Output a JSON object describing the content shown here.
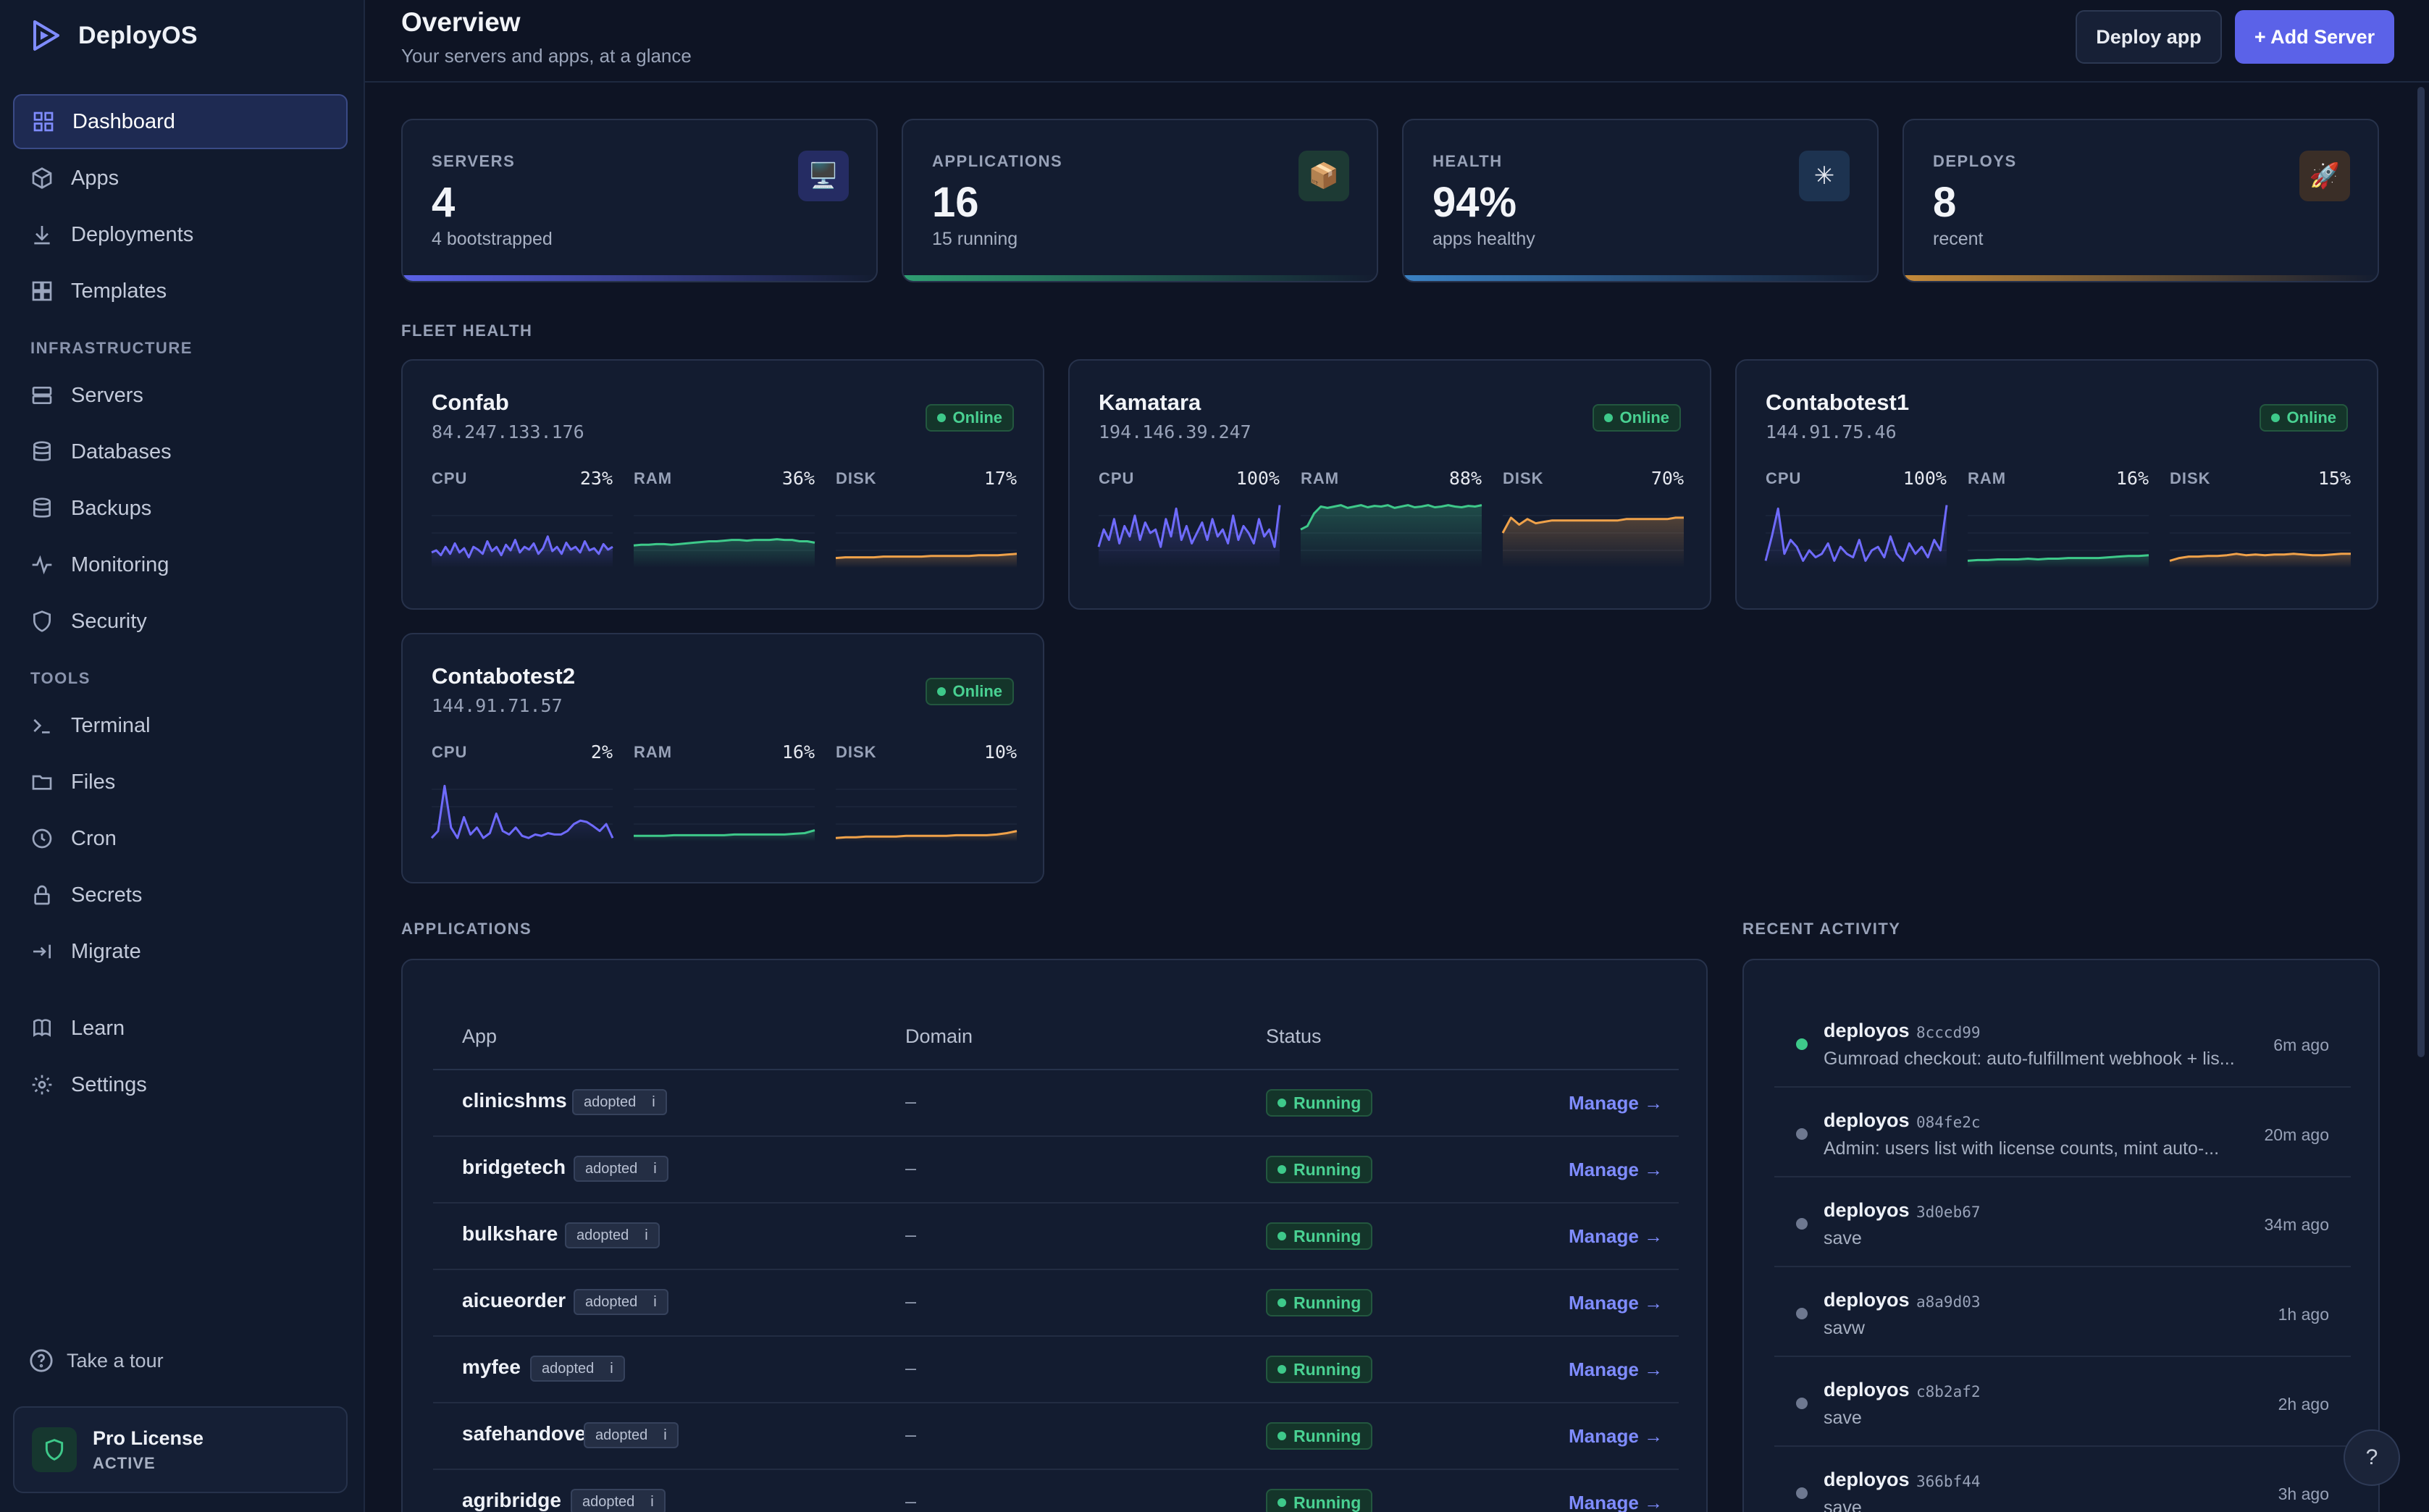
{
  "app": {
    "name": "DeployOS"
  },
  "sidebar": {
    "main": [
      {
        "label": "Dashboard",
        "icon": "dashboard-icon"
      },
      {
        "label": "Apps",
        "icon": "box-icon"
      },
      {
        "label": "Deployments",
        "icon": "download-icon"
      },
      {
        "label": "Templates",
        "icon": "grid-icon"
      }
    ],
    "infrastructure_title": "INFRASTRUCTURE",
    "infrastructure": [
      {
        "label": "Servers",
        "icon": "server-icon"
      },
      {
        "label": "Databases",
        "icon": "database-icon"
      },
      {
        "label": "Backups",
        "icon": "database-icon"
      },
      {
        "label": "Monitoring",
        "icon": "pulse-icon"
      },
      {
        "label": "Security",
        "icon": "shield-icon"
      }
    ],
    "tools_title": "TOOLS",
    "tools": [
      {
        "label": "Terminal",
        "icon": "terminal-icon"
      },
      {
        "label": "Files",
        "icon": "folder-icon"
      },
      {
        "label": "Cron",
        "icon": "clock-icon"
      },
      {
        "label": "Secrets",
        "icon": "lock-icon"
      },
      {
        "label": "Migrate",
        "icon": "migrate-icon"
      }
    ],
    "bottom": [
      {
        "label": "Learn",
        "icon": "book-icon"
      },
      {
        "label": "Settings",
        "icon": "gear-icon"
      }
    ],
    "tour_label": "Take a tour",
    "license": {
      "title": "Pro License",
      "status": "ACTIVE"
    }
  },
  "header": {
    "title": "Overview",
    "subtitle": "Your servers and apps, at a glance",
    "deploy_label": "Deploy app",
    "add_label": "+ Add Server"
  },
  "stats": [
    {
      "label": "SERVERS",
      "value": "4",
      "sub": "4 bootstrapped",
      "icon": "🖥️",
      "accent": "#5b62e8"
    },
    {
      "label": "APPLICATIONS",
      "value": "16",
      "sub": "15 running",
      "icon": "📦",
      "accent": "#2f9e72"
    },
    {
      "label": "HEALTH",
      "value": "94%",
      "sub": "apps healthy",
      "icon": "✳",
      "accent": "#3b82c4"
    },
    {
      "label": "DEPLOYS",
      "value": "8",
      "sub": "recent",
      "icon": "🚀",
      "accent": "#c48a3a"
    }
  ],
  "fleet_title": "FLEET HEALTH",
  "servers": [
    {
      "name": "Confab",
      "ip": "84.247.133.176",
      "status": "Online",
      "metrics": [
        {
          "label": "CPU",
          "value": "23%",
          "color": "#6f6bff",
          "series": [
            0.22,
            0.25,
            0.18,
            0.3,
            0.2,
            0.35,
            0.22,
            0.28,
            0.15,
            0.3,
            0.26,
            0.2,
            0.38,
            0.24,
            0.3,
            0.18,
            0.33,
            0.25,
            0.4,
            0.22,
            0.3,
            0.26,
            0.35,
            0.2,
            0.28,
            0.45,
            0.24,
            0.3,
            0.2,
            0.36,
            0.26,
            0.3,
            0.22,
            0.38,
            0.25,
            0.28,
            0.2,
            0.34,
            0.26,
            0.3
          ]
        },
        {
          "label": "RAM",
          "value": "36%",
          "color": "#3ec98a",
          "series": [
            0.32,
            0.33,
            0.33,
            0.34,
            0.34,
            0.33,
            0.34,
            0.35,
            0.36,
            0.37,
            0.38,
            0.38,
            0.39,
            0.4,
            0.4,
            0.39,
            0.4,
            0.4,
            0.4,
            0.41,
            0.4,
            0.4,
            0.38,
            0.38,
            0.36
          ]
        },
        {
          "label": "DISK",
          "value": "17%",
          "color": "#f0a24a",
          "series": [
            0.14,
            0.15,
            0.15,
            0.15,
            0.15,
            0.16,
            0.16,
            0.16,
            0.16,
            0.16,
            0.17,
            0.17,
            0.17,
            0.17,
            0.17,
            0.18,
            0.18,
            0.18,
            0.19,
            0.2
          ]
        }
      ]
    },
    {
      "name": "Kamatara",
      "ip": "194.146.39.247",
      "status": "Online",
      "metrics": [
        {
          "label": "CPU",
          "value": "100%",
          "color": "#6f6bff",
          "series": [
            0.3,
            0.55,
            0.4,
            0.7,
            0.35,
            0.6,
            0.45,
            0.75,
            0.4,
            0.65,
            0.5,
            0.55,
            0.3,
            0.7,
            0.45,
            0.85,
            0.4,
            0.6,
            0.35,
            0.5,
            0.65,
            0.4,
            0.7,
            0.45,
            0.55,
            0.35,
            0.75,
            0.4,
            0.6,
            0.5,
            0.35,
            0.7,
            0.45,
            0.55,
            0.3,
            0.9
          ]
        },
        {
          "label": "RAM",
          "value": "88%",
          "color": "#3ec98a",
          "series": [
            0.55,
            0.6,
            0.78,
            0.88,
            0.86,
            0.88,
            0.9,
            0.86,
            0.88,
            0.9,
            0.87,
            0.89,
            0.88,
            0.9,
            0.86,
            0.88,
            0.9,
            0.87,
            0.88,
            0.9,
            0.87,
            0.88,
            0.9,
            0.88,
            0.87,
            0.89,
            0.88,
            0.9
          ]
        },
        {
          "label": "DISK",
          "value": "70%",
          "color": "#f0a24a",
          "series": [
            0.5,
            0.72,
            0.62,
            0.7,
            0.64,
            0.66,
            0.68,
            0.68,
            0.68,
            0.68,
            0.68,
            0.68,
            0.68,
            0.68,
            0.68,
            0.7,
            0.7,
            0.7,
            0.7,
            0.7,
            0.7,
            0.72,
            0.72
          ]
        }
      ]
    },
    {
      "name": "Contabotest1",
      "ip": "144.91.75.46",
      "status": "Online",
      "metrics": [
        {
          "label": "CPU",
          "value": "100%",
          "color": "#6f6bff",
          "series": [
            0.1,
            0.45,
            0.85,
            0.2,
            0.4,
            0.3,
            0.1,
            0.25,
            0.15,
            0.2,
            0.35,
            0.1,
            0.3,
            0.2,
            0.15,
            0.4,
            0.1,
            0.25,
            0.3,
            0.15,
            0.45,
            0.2,
            0.1,
            0.35,
            0.2,
            0.3,
            0.15,
            0.4,
            0.25,
            0.9
          ]
        },
        {
          "label": "RAM",
          "value": "16%",
          "color": "#3ec98a",
          "series": [
            0.1,
            0.11,
            0.11,
            0.12,
            0.12,
            0.12,
            0.13,
            0.12,
            0.13,
            0.13,
            0.14,
            0.14,
            0.14,
            0.14,
            0.15,
            0.16,
            0.17,
            0.17,
            0.18
          ]
        },
        {
          "label": "DISK",
          "value": "15%",
          "color": "#f0a24a",
          "series": [
            0.1,
            0.14,
            0.16,
            0.16,
            0.17,
            0.17,
            0.18,
            0.2,
            0.18,
            0.19,
            0.18,
            0.19,
            0.19,
            0.2,
            0.19,
            0.18,
            0.18,
            0.19,
            0.2,
            0.2
          ]
        }
      ]
    },
    {
      "name": "Contabotest2",
      "ip": "144.91.71.57",
      "status": "Online",
      "metrics": [
        {
          "label": "CPU",
          "value": "2%",
          "color": "#6f6bff",
          "series": [
            0.05,
            0.15,
            0.8,
            0.2,
            0.05,
            0.35,
            0.1,
            0.2,
            0.05,
            0.12,
            0.4,
            0.15,
            0.1,
            0.2,
            0.08,
            0.05,
            0.1,
            0.08,
            0.12,
            0.1,
            0.1,
            0.15,
            0.25,
            0.3,
            0.28,
            0.22,
            0.15,
            0.25,
            0.05
          ]
        },
        {
          "label": "RAM",
          "value": "16%",
          "color": "#3ec98a",
          "series": [
            0.08,
            0.08,
            0.08,
            0.08,
            0.09,
            0.09,
            0.09,
            0.09,
            0.09,
            0.09,
            0.1,
            0.1,
            0.1,
            0.1,
            0.1,
            0.1,
            0.11,
            0.12,
            0.16
          ]
        },
        {
          "label": "DISK",
          "value": "10%",
          "color": "#f0a24a",
          "series": [
            0.05,
            0.06,
            0.06,
            0.07,
            0.07,
            0.07,
            0.07,
            0.08,
            0.08,
            0.08,
            0.08,
            0.08,
            0.09,
            0.09,
            0.09,
            0.09,
            0.1,
            0.12,
            0.15
          ]
        }
      ]
    }
  ],
  "applications": {
    "title": "APPLICATIONS",
    "columns": [
      "App",
      "Domain",
      "Status"
    ],
    "rows": [
      {
        "name": "clinicshms",
        "tag": "adopted",
        "info": "i",
        "domain": "–",
        "status": "Running",
        "action": "Manage →"
      },
      {
        "name": "bridgetech",
        "tag": "adopted",
        "info": "i",
        "domain": "–",
        "status": "Running",
        "action": "Manage →"
      },
      {
        "name": "bulkshare",
        "tag": "adopted",
        "info": "i",
        "domain": "–",
        "status": "Running",
        "action": "Manage →"
      },
      {
        "name": "aicueorder",
        "tag": "adopted",
        "info": "i",
        "domain": "–",
        "status": "Running",
        "action": "Manage →"
      },
      {
        "name": "myfee",
        "tag": "adopted",
        "info": "i",
        "domain": "–",
        "status": "Running",
        "action": "Manage →"
      },
      {
        "name": "safehandover",
        "tag": "adopted",
        "info": "i",
        "domain": "–",
        "status": "Running",
        "action": "Manage →"
      },
      {
        "name": "agribridge",
        "tag": "adopted",
        "info": "i",
        "domain": "–",
        "status": "Running",
        "action": "Manage →"
      }
    ]
  },
  "activity": {
    "title": "RECENT ACTIVITY",
    "items": [
      {
        "user": "deployos",
        "hash": "8cccd99",
        "message": "Gumroad checkout: auto-fulfillment webhook + lis...",
        "time": "6m ago",
        "live": true
      },
      {
        "user": "deployos",
        "hash": "084fe2c",
        "message": "Admin: users list with license counts, mint auto-...",
        "time": "20m ago",
        "live": false
      },
      {
        "user": "deployos",
        "hash": "3d0eb67",
        "message": "save",
        "time": "34m ago",
        "live": false
      },
      {
        "user": "deployos",
        "hash": "a8a9d03",
        "message": "savw",
        "time": "1h ago",
        "live": false
      },
      {
        "user": "deployos",
        "hash": "c8b2af2",
        "message": "save",
        "time": "2h ago",
        "live": false
      },
      {
        "user": "deployos",
        "hash": "366bf44",
        "message": "save",
        "time": "3h ago",
        "live": false
      }
    ]
  },
  "help_label": "?"
}
